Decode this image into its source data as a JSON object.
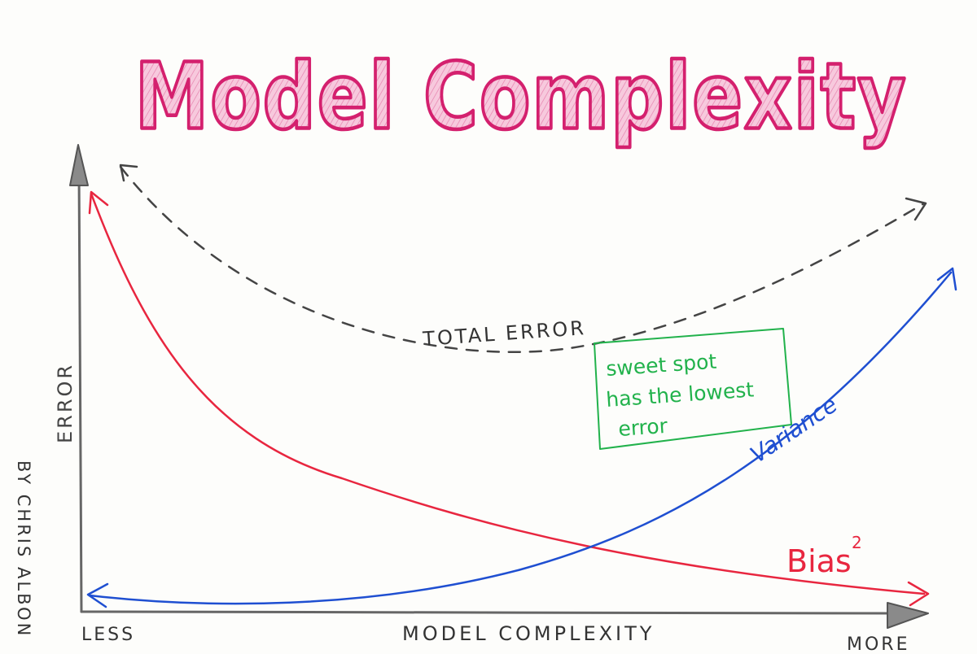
{
  "title": "Model Complexity",
  "axes": {
    "y_label": "ERROR",
    "x_label": "MODEL COMPLEXITY",
    "x_min_label": "LESS",
    "x_max_label": "MORE"
  },
  "curves": {
    "total_error": "TOTAL ERROR",
    "variance": "Variance",
    "bias": "Bias",
    "bias_sup": "2"
  },
  "annotation": {
    "line1": "sweet spot",
    "line2": "has the lowest",
    "line3": "error"
  },
  "credit": "BY CHRIS ALBON",
  "colors": {
    "title_fill": "#f4bcd6",
    "title_stroke": "#d4206e",
    "bias": "#e8263f",
    "variance": "#1f4fd1",
    "total": "#444444",
    "sweet": "#22b24c",
    "axis": "#666666"
  }
}
